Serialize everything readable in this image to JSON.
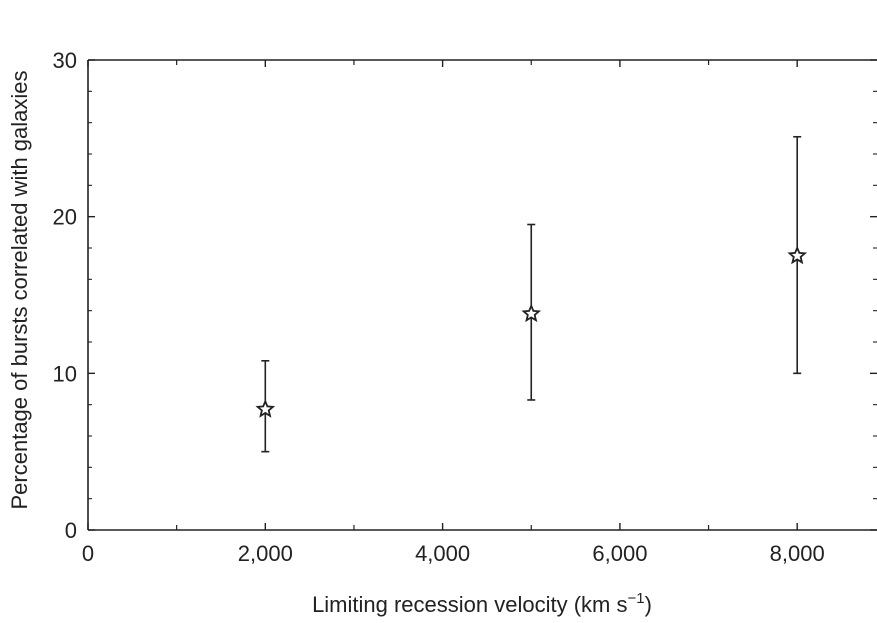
{
  "chart_data": {
    "type": "scatter",
    "xlabel": "Limiting recession velocity (km s",
    "xlabel_superscript": "−1",
    "xlabel_close": ")",
    "ylabel": "Percentage of bursts correlated with galaxies",
    "xlim": [
      0,
      8900
    ],
    "ylim": [
      0,
      30
    ],
    "x_ticks": [
      0,
      2000,
      4000,
      6000,
      8000
    ],
    "x_tick_labels": [
      "0",
      "2,000",
      "4,000",
      "6,000",
      "8,000"
    ],
    "x_minor_ticks": [
      1000,
      3000,
      5000,
      7000
    ],
    "y_ticks": [
      0,
      10,
      20,
      30
    ],
    "y_tick_labels": [
      "0",
      "10",
      "20",
      "30"
    ],
    "y_minor_step": 2,
    "grid": false,
    "legend": "none",
    "marker": "star",
    "points": [
      {
        "x": 2000,
        "y": 7.7,
        "err_low": 5.0,
        "err_high": 10.8
      },
      {
        "x": 5000,
        "y": 13.8,
        "err_low": 8.3,
        "err_high": 19.5
      },
      {
        "x": 8000,
        "y": 17.5,
        "err_low": 10.0,
        "err_high": 25.1
      }
    ],
    "color": "#222222"
  }
}
